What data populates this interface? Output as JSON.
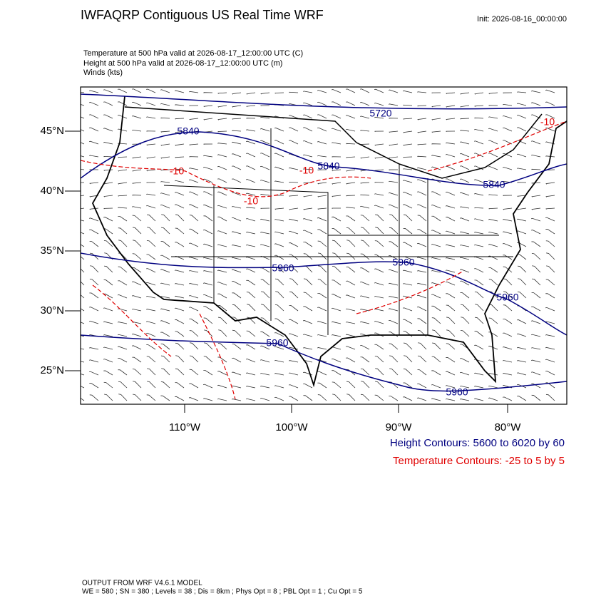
{
  "header": {
    "title": "IWFAQRP Contiguous US Real Time WRF",
    "init": "Init: 2026-08-16_00:00:00"
  },
  "fields": [
    "Temperature at 500 hPa valid at 2026-08-17_12:00:00 UTC   (C)",
    "Height at 500 hPa valid at 2026-08-17_12:00:00 UTC   (m)",
    "Winds   (kts)"
  ],
  "axes": {
    "lat": [
      "45°N",
      "40°N",
      "35°N",
      "30°N",
      "25°N"
    ],
    "lon": [
      "110°W",
      "100°W",
      "90°W",
      "80°W"
    ]
  },
  "contour_labels": {
    "height": [
      "5720",
      "5840",
      "5840",
      "5840",
      "5960",
      "5960",
      "5960",
      "5960",
      "5960"
    ],
    "temperature": [
      "-10",
      "-10",
      "-10",
      "-10"
    ]
  },
  "legend": [
    "Height Contours: 5600 to 6020 by 60",
    "Temperature Contours: -25 to 5 by 5"
  ],
  "footer": [
    "OUTPUT FROM WRF V4.6.1 MODEL",
    "WE = 580 ; SN = 380 ; Levels = 38 ; Dis = 8km ; Phys Opt = 8 ; PBL Opt = 1 ; Cu Opt = 5"
  ]
}
